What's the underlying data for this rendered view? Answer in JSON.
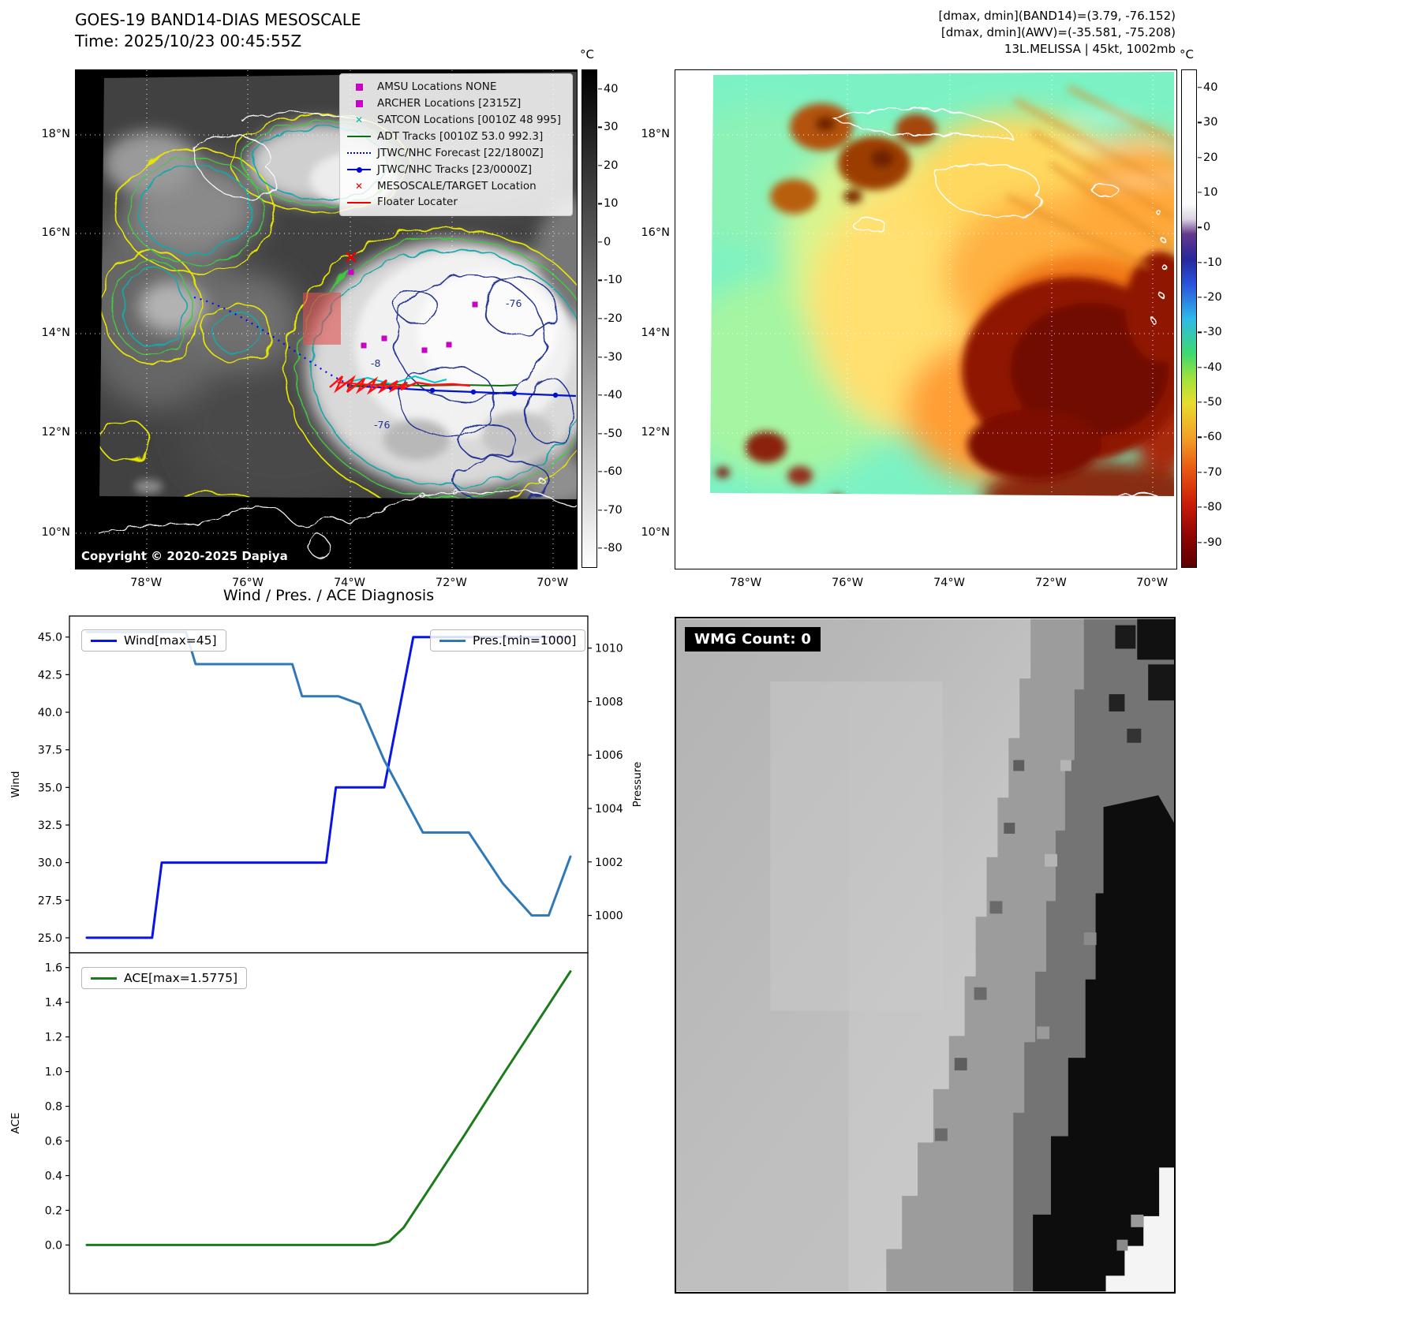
{
  "band14": {
    "title_line1": "GOES-19 BAND14-DIAS MESOSCALE",
    "title_line2": "Time: 2025/10/23 00:45:55Z",
    "copyright": "Copyright © 2020-2025 Dapiya",
    "colorbar": {
      "unit": "°C",
      "ticks": [
        "40",
        "30",
        "20",
        "10",
        "0",
        "-10",
        "-20",
        "-30",
        "-40",
        "-50",
        "-60",
        "-70",
        "-80"
      ]
    },
    "x_ticks": [
      "78°W",
      "76°W",
      "74°W",
      "72°W",
      "70°W"
    ],
    "y_ticks": [
      "18°N",
      "16°N",
      "14°N",
      "12°N",
      "10°N"
    ],
    "legend_items": [
      {
        "label": "AMSU Locations NONE",
        "marker": "square",
        "color": "#c800c8"
      },
      {
        "label": "ARCHER Locations [2315Z]",
        "marker": "square",
        "color": "#c800c8"
      },
      {
        "label": "SATCON Locations [0010Z 48 995]",
        "marker": "x",
        "color": "#00b4b4"
      },
      {
        "label": "ADT Tracks [0010Z 53.0 992.3]",
        "marker": "line",
        "color": "#0f6e0f"
      },
      {
        "label": "JTWC/NHC Forecast [22/1800Z]",
        "marker": "dotted",
        "color": "#0000ee"
      },
      {
        "label": "JTWC/NHC Tracks [23/0000Z]",
        "marker": "line-dot",
        "color": "#0000cc"
      },
      {
        "label": "MESOSCALE/TARGET Location",
        "marker": "x",
        "color": "#ee0000"
      },
      {
        "label": "Floater Locater",
        "marker": "line",
        "color": "#ee0000"
      }
    ],
    "contour_labels": [
      "-76",
      "-76",
      "-8"
    ]
  },
  "awv": {
    "header_lines": [
      "[dmax, dmin](BAND14)=(3.79, -76.152)",
      "[dmax, dmin](AWV)=(-35.581, -75.208)",
      "13L.MELISSA | 45kt, 1002mb"
    ],
    "colorbar": {
      "unit": "°C",
      "ticks": [
        "40",
        "30",
        "20",
        "10",
        "0",
        "-10",
        "-20",
        "-30",
        "-40",
        "-50",
        "-60",
        "-70",
        "-80",
        "-90"
      ]
    },
    "x_ticks": [
      "78°W",
      "76°W",
      "74°W",
      "72°W",
      "70°W"
    ],
    "y_ticks": [
      "18°N",
      "16°N",
      "14°N",
      "12°N",
      "10°N"
    ]
  },
  "wmg": {
    "label": "WMG Count: 0"
  },
  "chart_data": {
    "type": "line",
    "title": "Wind / Pres. / ACE Diagnosis",
    "x_range": [
      0,
      1
    ],
    "panels": [
      {
        "name": "wind_pressure",
        "left_axis": {
          "label": "Wind",
          "tick_labels": [
            "25.0",
            "27.5",
            "30.0",
            "32.5",
            "35.0",
            "37.5",
            "40.0",
            "42.5",
            "45.0"
          ],
          "range": [
            24.0,
            46.4
          ]
        },
        "right_axis": {
          "label": "Pressure",
          "tick_labels": [
            "1000",
            "1002",
            "1004",
            "1006",
            "1008",
            "1010"
          ],
          "range": [
            998.6,
            1011.2
          ]
        },
        "series": [
          {
            "name": "Wind[max=45]",
            "color": "#0a14e6",
            "axis": "left",
            "x": [
              0,
              0.135,
              0.155,
              0.495,
              0.515,
              0.615,
              0.675,
              1.0
            ],
            "y": [
              25,
              25,
              30,
              30,
              35,
              35,
              45,
              45
            ]
          },
          {
            "name": "Pres.[min=1000]",
            "color": "#3079b8",
            "axis": "right",
            "x": [
              0,
              0.205,
              0.225,
              0.425,
              0.445,
              0.52,
              0.565,
              0.615,
              0.695,
              0.79,
              0.86,
              0.92,
              0.955,
              1.0
            ],
            "y": [
              1010.6,
              1010.6,
              1009.4,
              1009.4,
              1008.2,
              1008.2,
              1007.9,
              1005.8,
              1003.1,
              1003.1,
              1001.2,
              1000.0,
              1000.0,
              1002.2
            ]
          }
        ]
      },
      {
        "name": "ace",
        "left_axis": {
          "label": "ACE",
          "tick_labels": [
            "0.0",
            "0.2",
            "0.4",
            "0.6",
            "0.8",
            "1.0",
            "1.2",
            "1.4",
            "1.6"
          ],
          "range": [
            -0.28,
            1.685
          ]
        },
        "series": [
          {
            "name": "ACE[max=1.5775]",
            "color": "#1c7c1c",
            "axis": "left",
            "x": [
              0,
              0.595,
              0.625,
              0.655,
              0.7,
              0.78,
              0.86,
              1.0
            ],
            "y": [
              0,
              0,
              0.02,
              0.1,
              0.29,
              0.63,
              0.98,
              1.5775
            ]
          }
        ]
      }
    ]
  }
}
